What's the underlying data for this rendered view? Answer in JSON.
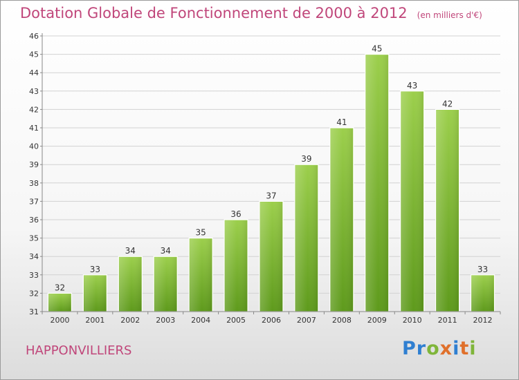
{
  "chart_data": {
    "type": "bar",
    "title": "Dotation Globale de Fonctionnement de 2000 à 2012",
    "subtitle": "(en milliers d'€)",
    "categories": [
      "2000",
      "2001",
      "2002",
      "2003",
      "2004",
      "2005",
      "2006",
      "2007",
      "2008",
      "2009",
      "2010",
      "2011",
      "2012"
    ],
    "values": [
      32,
      33,
      34,
      34,
      35,
      36,
      37,
      39,
      41,
      45,
      43,
      42,
      33
    ],
    "ylim": [
      31,
      46
    ],
    "yticks": [
      31,
      32,
      33,
      34,
      35,
      36,
      37,
      38,
      39,
      40,
      41,
      42,
      43,
      44,
      45,
      46
    ],
    "grid": true,
    "bar_color_top": "#9ccf4c",
    "bar_color_bottom": "#5e9a1c"
  },
  "commune": "HAPPONVILLIERS",
  "logo": [
    "Pr",
    "o",
    "x",
    "i",
    "t",
    "i"
  ]
}
